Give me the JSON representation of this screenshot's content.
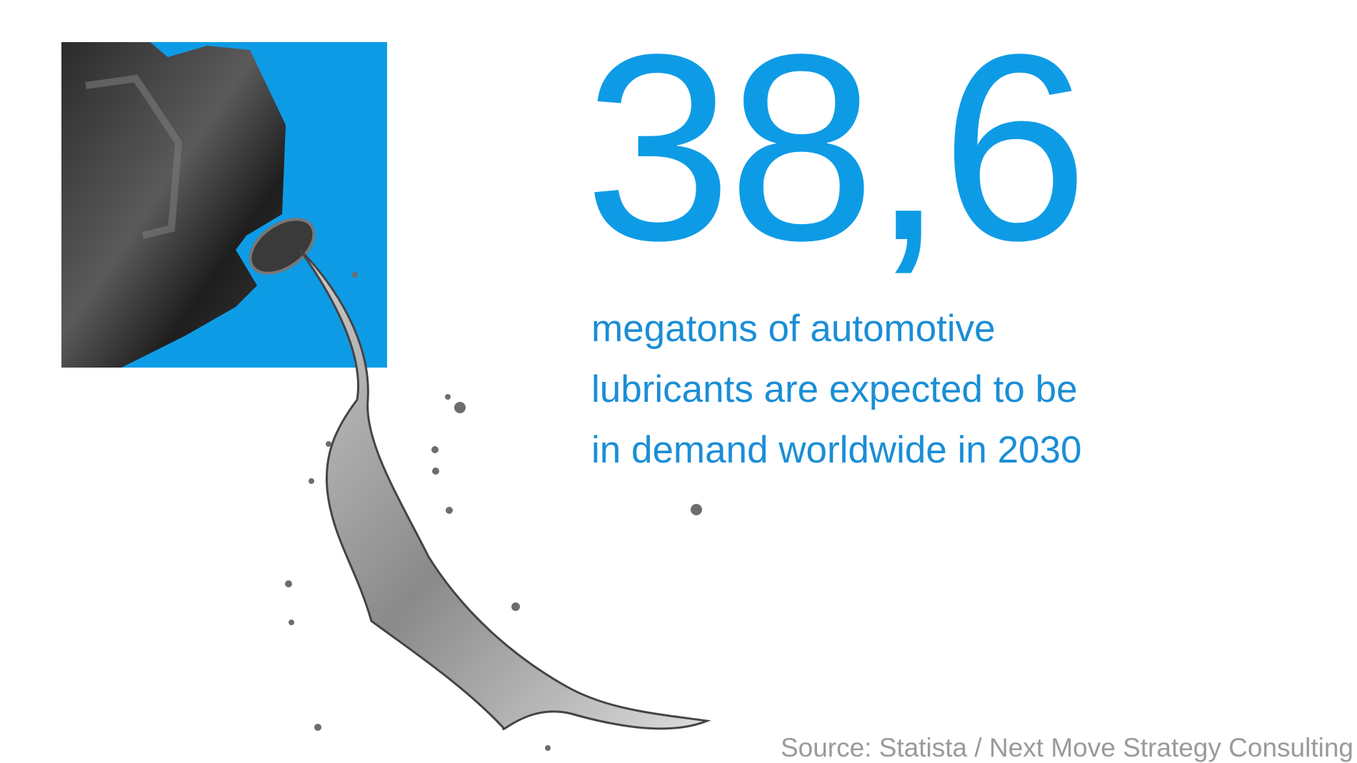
{
  "headline": {
    "figure": "38,6",
    "lines": [
      "megatons of automotive",
      "lubricants are expected to be",
      "in demand worldwide in 2030"
    ]
  },
  "source": "Source: Statista / Next Move Strategy Consulting"
}
